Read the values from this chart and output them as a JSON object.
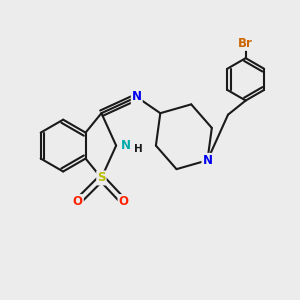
{
  "background_color": "#ececec",
  "bond_color": "#1a1a1a",
  "bond_width": 1.5,
  "atom_colors": {
    "N": "#0000ee",
    "S": "#bbbb00",
    "O": "#ff2200",
    "Br": "#cc6600",
    "NH": "#00aaaa",
    "H": "#1a1a1a"
  },
  "font_size": 8.5
}
